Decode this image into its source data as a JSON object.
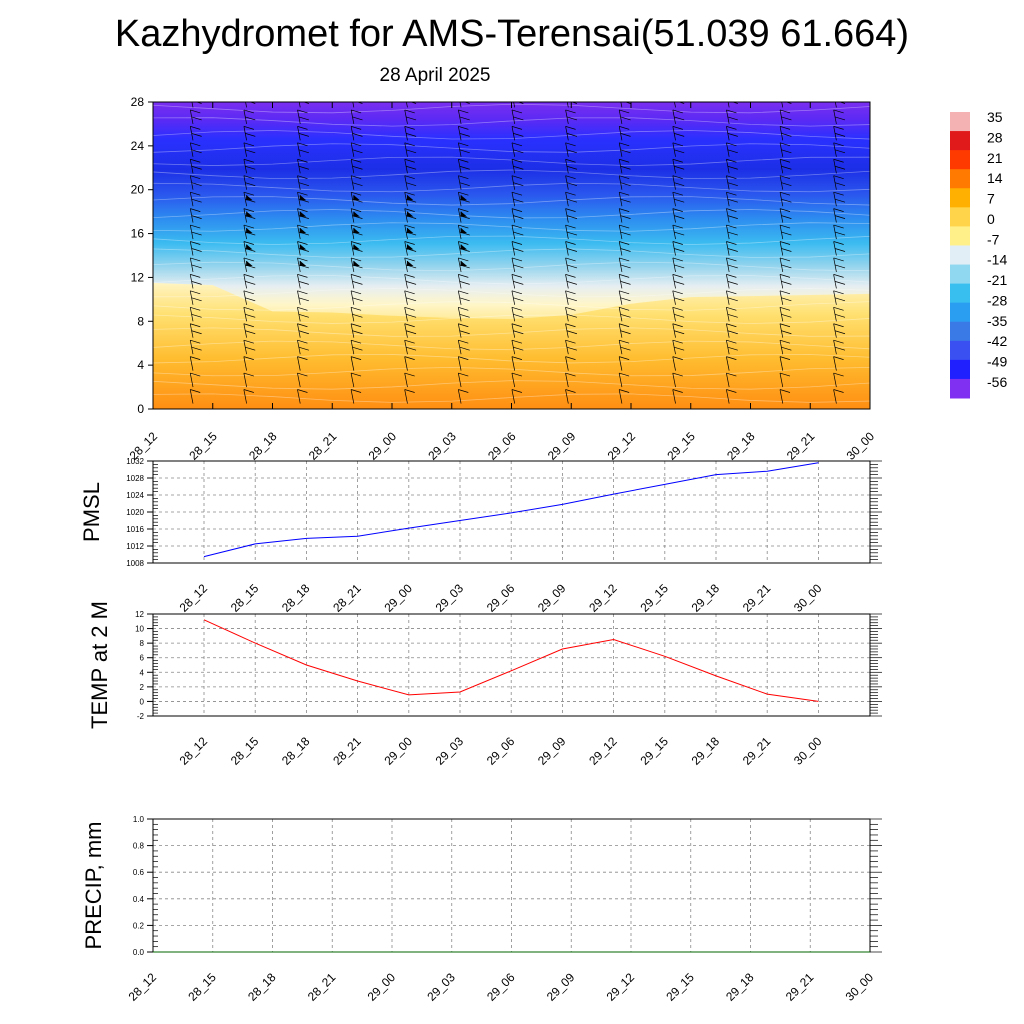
{
  "title": "Kazhydromet for AMS-Terensai(51.039 61.664)",
  "subtitle": "28 April 2025",
  "time_labels": [
    "28_12",
    "28_15",
    "28_18",
    "28_21",
    "29_00",
    "29_03",
    "29_06",
    "29_09",
    "29_12",
    "29_15",
    "29_18",
    "29_21",
    "30_00"
  ],
  "colors": {
    "pmsl_line": "#0000ff",
    "temp_line": "#ff0000",
    "precip_line": "#006400",
    "grid": "#888888"
  },
  "chart_data": [
    {
      "type": "heatmap",
      "title": "",
      "x": [
        "28_12",
        "28_15",
        "28_18",
        "28_21",
        "29_00",
        "29_03",
        "29_06",
        "29_09",
        "29_12",
        "29_15",
        "29_18",
        "29_21",
        "30_00"
      ],
      "ylim": [
        0,
        28
      ],
      "yticks": [
        0,
        4,
        8,
        12,
        16,
        20,
        24,
        28
      ],
      "freezing_level_height": [
        11.5,
        11.3,
        8.9,
        8.8,
        8.5,
        8.3,
        8.2,
        8.6,
        9.6,
        10.2,
        10.3,
        10.4,
        10.5
      ],
      "colorbar_labels": [
        "35",
        "28",
        "21",
        "14",
        "7",
        "0",
        "-7",
        "-14",
        "-21",
        "-28",
        "-35",
        "-42",
        "-49",
        "-56"
      ],
      "colorbar_colors": [
        "#f4b2b2",
        "#e01a1a",
        "#ff3a00",
        "#ff7a00",
        "#ffb000",
        "#ffd44a",
        "#fff08a",
        "#e2eef5",
        "#8fd8f0",
        "#38bff0",
        "#2a9ef0",
        "#3a7ae6",
        "#3a50f0",
        "#2020ff",
        "#8030f0"
      ],
      "wind_barbs": true,
      "strong_wind_pennants": {
        "times": [
          "28_15",
          "28_18",
          "28_21",
          "29_00",
          "29_03"
        ],
        "height_range": [
          13.5,
          20
        ]
      }
    },
    {
      "type": "line",
      "ylabel": "PMSL",
      "x": [
        "28_12",
        "28_15",
        "28_18",
        "28_21",
        "29_00",
        "29_03",
        "29_06",
        "29_09",
        "29_12",
        "29_15",
        "29_18",
        "29_21",
        "30_00"
      ],
      "ylim": [
        1008,
        1032
      ],
      "yticks": [
        1008,
        1012,
        1016,
        1020,
        1024,
        1028,
        1032
      ],
      "series": [
        {
          "values": [
            1009.5,
            1012.5,
            1013.8,
            1014.3,
            1016.2,
            1018.0,
            1019.8,
            1021.8,
            1024.2,
            1026.5,
            1028.8,
            1029.6,
            1031.6
          ]
        }
      ]
    },
    {
      "type": "line",
      "ylabel": "TEMP at 2 M",
      "x": [
        "28_12",
        "28_15",
        "28_18",
        "28_21",
        "29_00",
        "29_03",
        "29_06",
        "29_09",
        "29_12",
        "29_15",
        "29_18",
        "29_21",
        "30_00"
      ],
      "ylim": [
        -2,
        12
      ],
      "yticks": [
        -2,
        0,
        2,
        4,
        6,
        8,
        10,
        12
      ],
      "series": [
        {
          "values": [
            11.2,
            8.0,
            5.0,
            2.8,
            0.9,
            1.3,
            4.2,
            7.2,
            8.5,
            6.2,
            3.5,
            1.0,
            0.0
          ]
        }
      ]
    },
    {
      "type": "line",
      "ylabel": "PRECIP, mm",
      "x": [
        "28_12",
        "28_15",
        "28_18",
        "28_21",
        "29_00",
        "29_03",
        "29_06",
        "29_09",
        "29_12",
        "29_15",
        "29_18",
        "29_21",
        "30_00"
      ],
      "ylim": [
        0.0,
        1.0
      ],
      "yticks": [
        "0.0",
        "0.2",
        "0.4",
        "0.6",
        "0.8",
        "1.0"
      ],
      "series": [
        {
          "values": [
            0,
            0,
            0,
            0,
            0,
            0,
            0,
            0,
            0,
            0,
            0,
            0,
            0
          ]
        }
      ]
    }
  ]
}
